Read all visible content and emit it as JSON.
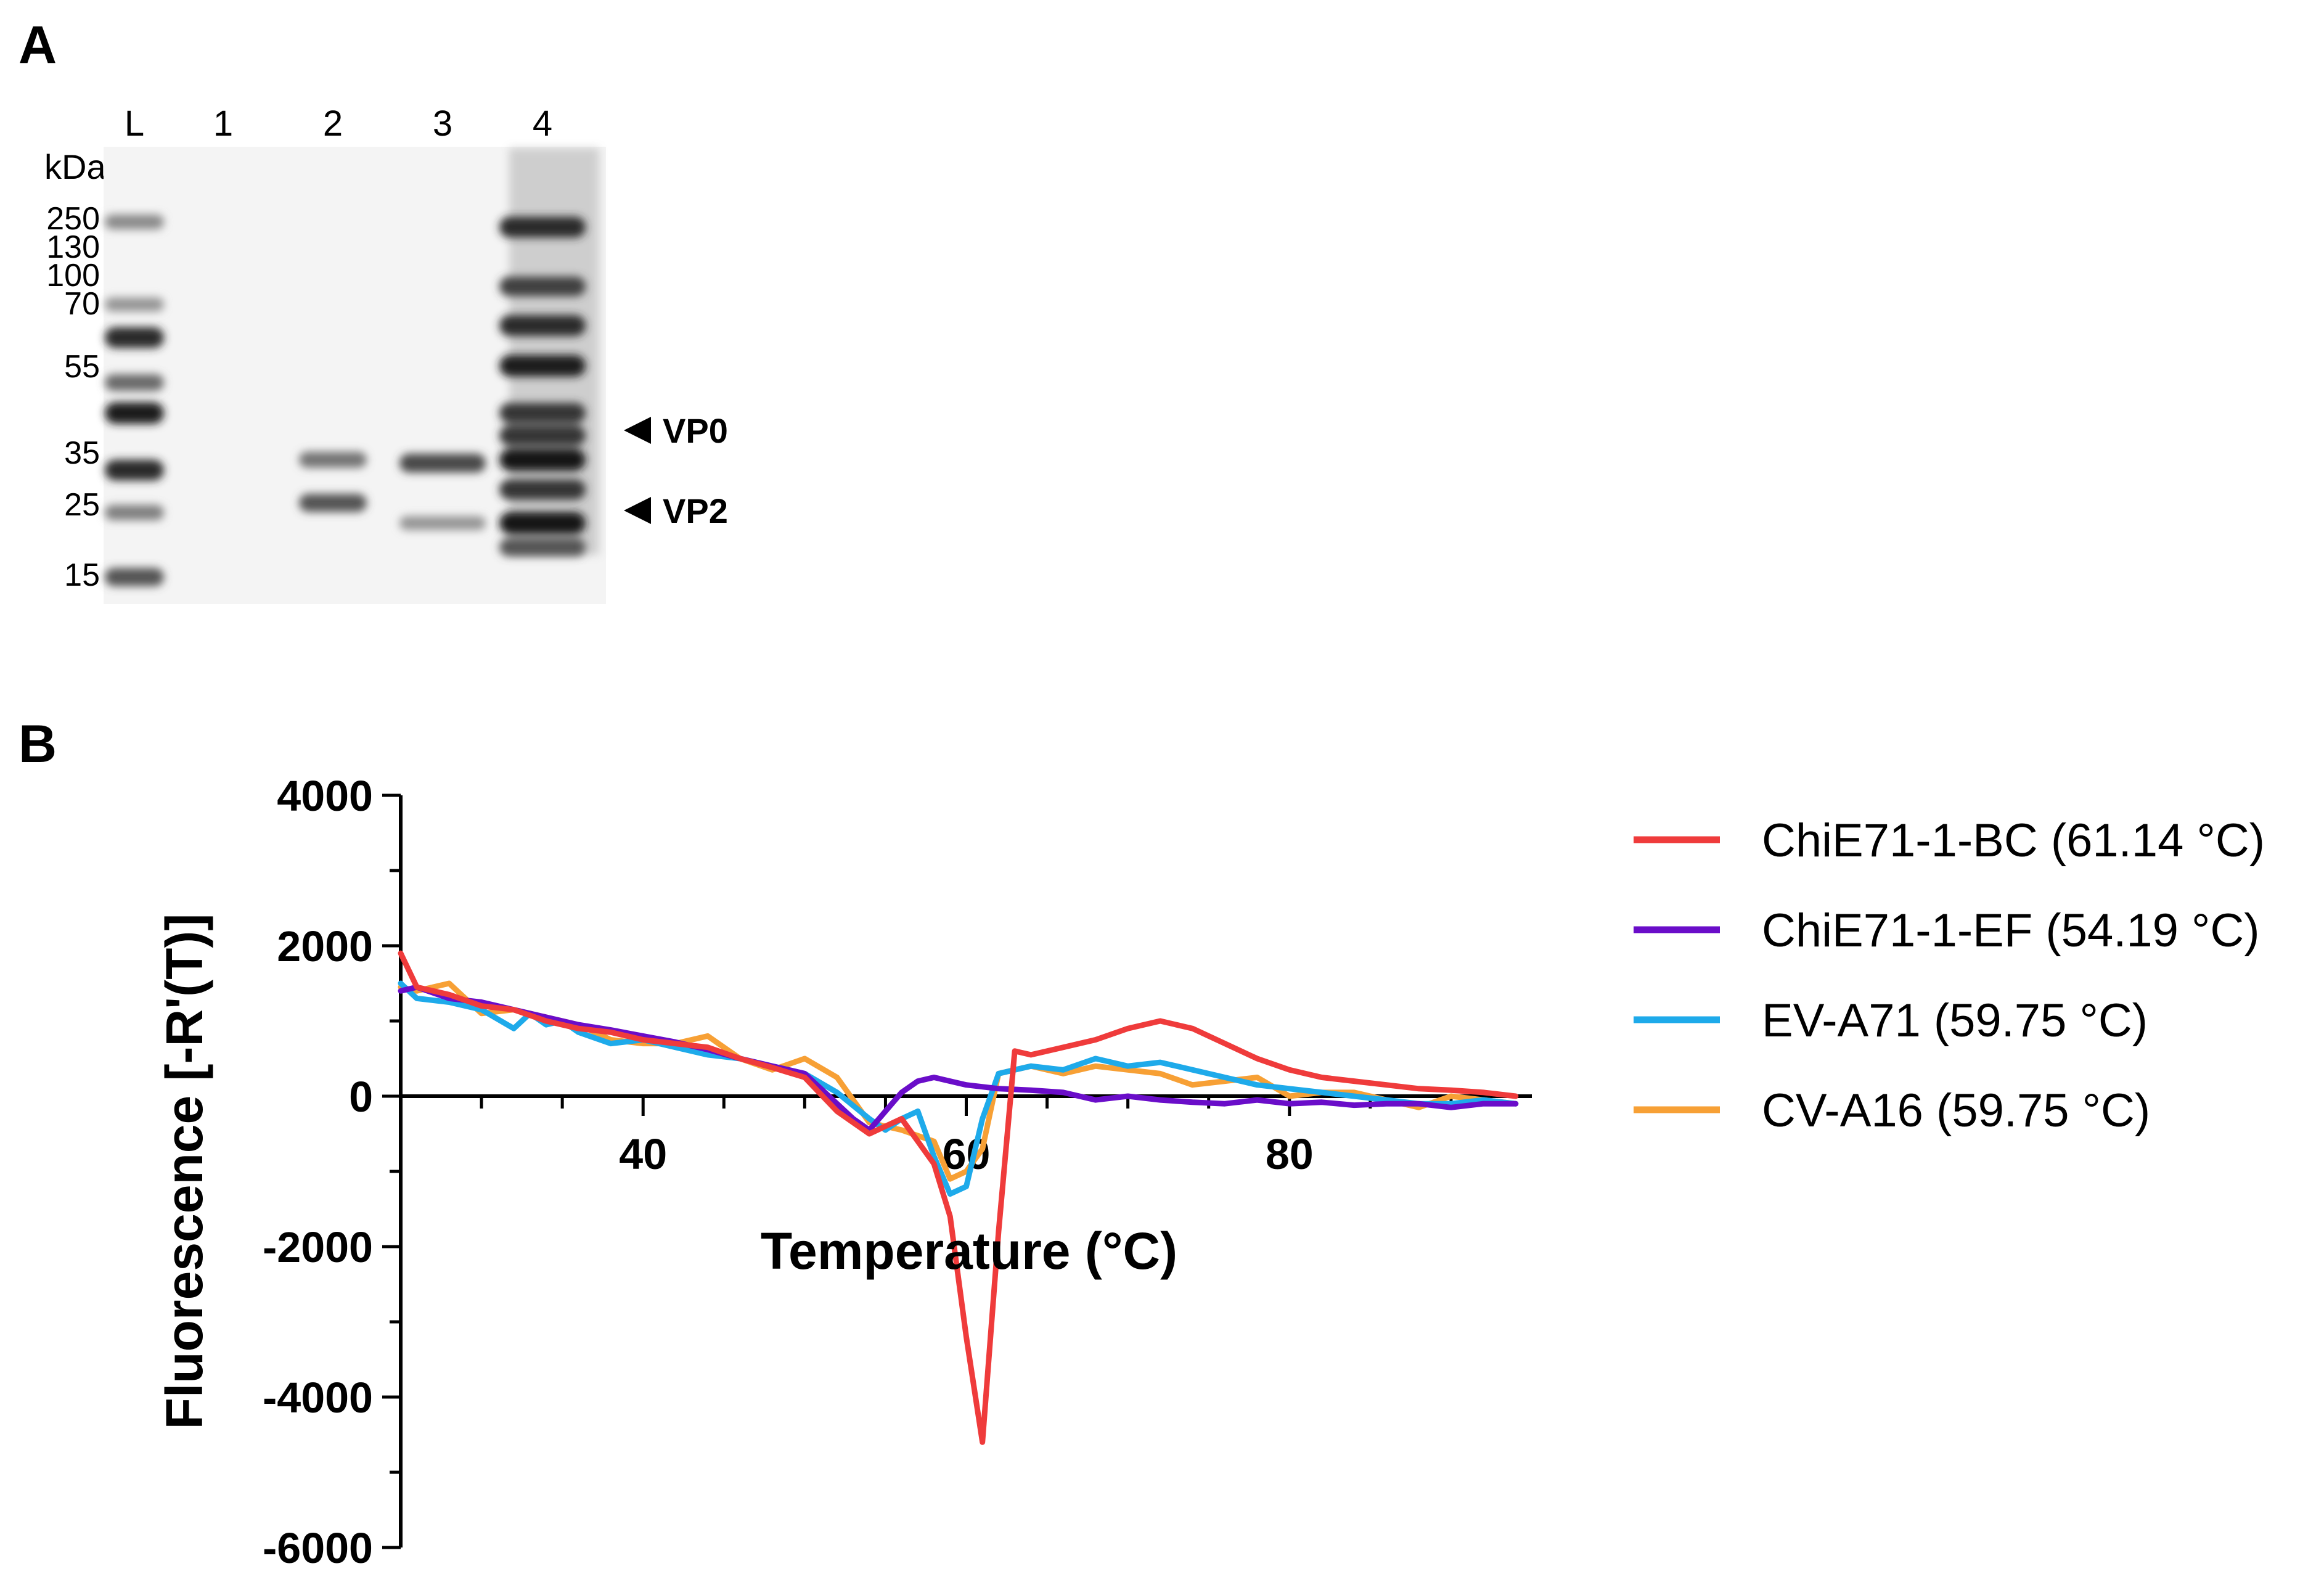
{
  "panel_a": {
    "letter": "A",
    "lane_labels": [
      "L",
      "1",
      "2",
      "3",
      "4"
    ],
    "unit_label": "kDa",
    "ladder_markers": [
      "250",
      "130",
      "100",
      "70",
      "55",
      "35",
      "25",
      "15"
    ],
    "band_labels": [
      "VP0",
      "VP2"
    ],
    "lanes": [
      {
        "name": "L",
        "bands": [
          {
            "kda": 250,
            "intensity": 0.45
          },
          {
            "kda": 130,
            "intensity": 0.4
          },
          {
            "kda": 100,
            "intensity": 0.9
          },
          {
            "kda": 70,
            "intensity": 0.6
          },
          {
            "kda": 55,
            "intensity": 0.95
          },
          {
            "kda": 35,
            "intensity": 0.9
          },
          {
            "kda": 25,
            "intensity": 0.5
          },
          {
            "kda": 15,
            "intensity": 0.7
          }
        ]
      },
      {
        "name": "1",
        "bands": []
      },
      {
        "name": "2",
        "bands": [
          {
            "kda": 38,
            "intensity": 0.55
          },
          {
            "kda": 27,
            "intensity": 0.7
          }
        ]
      },
      {
        "name": "3",
        "bands": [
          {
            "kda": 37,
            "intensity": 0.75
          },
          {
            "kda": 23,
            "intensity": 0.4
          }
        ]
      },
      {
        "name": "4",
        "bands": [
          {
            "kda": 240,
            "intensity": 0.9
          },
          {
            "kda": 150,
            "intensity": 0.8
          },
          {
            "kda": 110,
            "intensity": 0.9
          },
          {
            "kda": 80,
            "intensity": 0.95
          },
          {
            "kda": 55,
            "intensity": 0.85
          },
          {
            "kda": 46,
            "intensity": 0.85
          },
          {
            "kda": 38,
            "intensity": 1.0
          },
          {
            "kda": 30,
            "intensity": 0.85
          },
          {
            "kda": 23,
            "intensity": 1.0
          },
          {
            "kda": 19,
            "intensity": 0.7
          }
        ]
      }
    ]
  },
  "panel_b": {
    "letter": "B"
  },
  "chart_data": {
    "type": "line",
    "title": "",
    "xlabel": "Temperature (°C)",
    "ylabel": "Fluorescence [-R'(T)]",
    "xlim": [
      25,
      95
    ],
    "ylim": [
      -6000,
      4000
    ],
    "x_ticks": [
      40,
      60,
      80
    ],
    "y_ticks": [
      4000,
      2000,
      0,
      -2000,
      -4000,
      -6000
    ],
    "x_tick_labels": [
      "40",
      "60",
      "80"
    ],
    "y_tick_labels": [
      "4000",
      "2000",
      "0",
      "-2000",
      "-4000",
      "-6000"
    ],
    "legend_position": "right",
    "grid": false,
    "series": [
      {
        "name": "ChiE71-1-BC (61.14 °C)",
        "color": "#ef3b3b",
        "x": [
          25,
          26,
          28,
          30,
          32,
          34,
          36,
          38,
          40,
          42,
          44,
          46,
          48,
          50,
          52,
          54,
          56,
          58,
          59,
          60,
          61,
          62,
          63,
          64,
          66,
          68,
          70,
          72,
          74,
          76,
          78,
          80,
          82,
          84,
          86,
          88,
          90,
          92,
          94
        ],
        "y": [
          1900,
          1450,
          1350,
          1200,
          1150,
          1000,
          900,
          850,
          750,
          700,
          650,
          500,
          380,
          250,
          -200,
          -500,
          -300,
          -900,
          -1600,
          -3200,
          -4600,
          -1800,
          600,
          550,
          650,
          750,
          900,
          1000,
          900,
          700,
          500,
          350,
          250,
          200,
          150,
          100,
          80,
          50,
          0
        ]
      },
      {
        "name": "ChiE71-1-EF (54.19 °C)",
        "color": "#6a0dc9",
        "x": [
          25,
          26,
          28,
          30,
          32,
          34,
          36,
          38,
          40,
          42,
          44,
          46,
          48,
          50,
          52,
          53,
          54,
          55,
          56,
          57,
          58,
          60,
          62,
          64,
          66,
          68,
          70,
          72,
          74,
          76,
          78,
          80,
          82,
          84,
          86,
          88,
          90,
          92,
          94
        ],
        "y": [
          1400,
          1450,
          1300,
          1250,
          1150,
          1050,
          950,
          880,
          800,
          720,
          620,
          500,
          400,
          300,
          -100,
          -300,
          -450,
          -200,
          50,
          200,
          250,
          150,
          100,
          80,
          50,
          -50,
          0,
          -50,
          -80,
          -100,
          -50,
          -100,
          -80,
          -120,
          -100,
          -100,
          -150,
          -100,
          -100
        ]
      },
      {
        "name": "EV-A71 (59.75 °C)",
        "color": "#1eaaea",
        "x": [
          25,
          26,
          28,
          30,
          32,
          33,
          34,
          35,
          36,
          38,
          40,
          42,
          44,
          46,
          48,
          50,
          52,
          54,
          55,
          56,
          57,
          58,
          59,
          60,
          61,
          62,
          63,
          64,
          66,
          68,
          70,
          72,
          74,
          76,
          78,
          80,
          82,
          84,
          86,
          88,
          90,
          92,
          94
        ],
        "y": [
          1500,
          1300,
          1250,
          1150,
          900,
          1100,
          950,
          1000,
          850,
          700,
          750,
          650,
          550,
          500,
          400,
          300,
          50,
          -300,
          -450,
          -300,
          -200,
          -800,
          -1300,
          -1200,
          -300,
          300,
          350,
          400,
          350,
          500,
          400,
          450,
          350,
          250,
          150,
          100,
          50,
          0,
          -50,
          -100,
          -100,
          -50,
          -100
        ]
      },
      {
        "name": "CV-A16 (59.75 °C)",
        "color": "#f7a035",
        "x": [
          25,
          26,
          28,
          30,
          32,
          34,
          36,
          38,
          40,
          42,
          44,
          46,
          48,
          50,
          52,
          54,
          56,
          58,
          59,
          60,
          61,
          62,
          63,
          64,
          66,
          68,
          70,
          72,
          74,
          76,
          78,
          80,
          82,
          84,
          86,
          88,
          90,
          92,
          94
        ],
        "y": [
          1450,
          1400,
          1500,
          1100,
          1150,
          1050,
          950,
          750,
          700,
          700,
          800,
          500,
          350,
          500,
          250,
          -350,
          -450,
          -600,
          -1100,
          -1000,
          -700,
          300,
          350,
          400,
          300,
          400,
          350,
          300,
          150,
          200,
          250,
          0,
          50,
          50,
          -50,
          -150,
          0,
          -50,
          -100
        ]
      }
    ]
  }
}
